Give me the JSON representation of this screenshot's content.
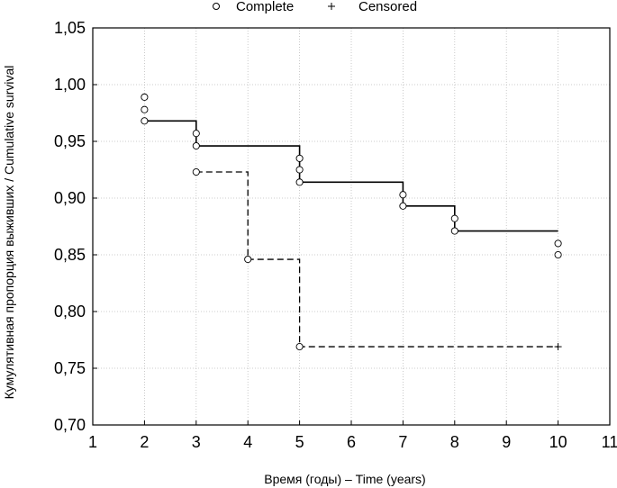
{
  "chart_data": {
    "type": "line",
    "title": "",
    "xlabel": "Время (годы) – Time (years)",
    "ylabel": "Кумулятивная пропорция выживших / Cumulative survival",
    "xlim": [
      1,
      11
    ],
    "ylim": [
      0.7,
      1.05
    ],
    "x_ticks": [
      1,
      2,
      3,
      4,
      5,
      6,
      7,
      8,
      9,
      10,
      11
    ],
    "x_tick_labels": [
      "1",
      "2",
      "3",
      "4",
      "5",
      "6",
      "7",
      "8",
      "9",
      "10",
      "11"
    ],
    "y_ticks": [
      0.7,
      0.75,
      0.8,
      0.85,
      0.9,
      0.95,
      1.0,
      1.05
    ],
    "y_tick_labels": [
      "0,70",
      "0,75",
      "0,80",
      "0,85",
      "0,90",
      "0,95",
      "1,00",
      "1,05"
    ],
    "grid": true,
    "legend": {
      "placement": "top",
      "entries": [
        {
          "marker": "circle",
          "label": "Complete"
        },
        {
          "marker": "plus",
          "label": "Censored"
        }
      ]
    },
    "series": [
      {
        "style": "solid",
        "step": [
          [
            2,
            0.968
          ],
          [
            3,
            0.946
          ],
          [
            5,
            0.914
          ],
          [
            7,
            0.893
          ],
          [
            8,
            0.871
          ],
          [
            10,
            0.871
          ]
        ],
        "complete_points": [
          [
            2,
            0.989
          ],
          [
            2,
            0.978
          ],
          [
            2,
            0.968
          ],
          [
            3,
            0.957
          ],
          [
            3,
            0.946
          ],
          [
            5,
            0.935
          ],
          [
            5,
            0.925
          ],
          [
            5,
            0.914
          ],
          [
            7,
            0.903
          ],
          [
            7,
            0.893
          ],
          [
            8,
            0.882
          ],
          [
            8,
            0.871
          ],
          [
            10,
            0.86
          ],
          [
            10,
            0.85
          ]
        ],
        "censored_points": []
      },
      {
        "style": "dashed",
        "step": [
          [
            3,
            0.923
          ],
          [
            4,
            0.846
          ],
          [
            5,
            0.769
          ],
          [
            10,
            0.769
          ]
        ],
        "complete_points": [
          [
            3,
            0.923
          ],
          [
            4,
            0.846
          ],
          [
            5,
            0.769
          ]
        ],
        "censored_points": [
          [
            10,
            0.769
          ]
        ]
      }
    ]
  }
}
